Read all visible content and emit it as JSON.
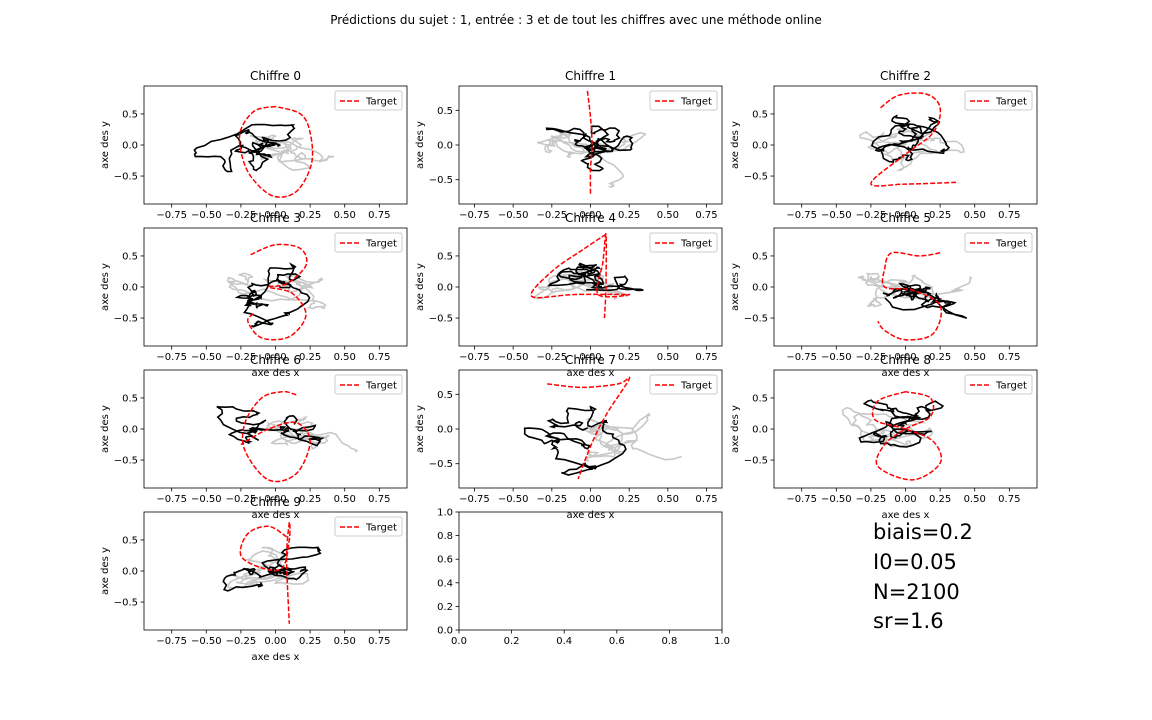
{
  "suptitle": "Prédictions du sujet : 1, entrée : 3 et de tout les chiffres avec une méthode online",
  "colors": {
    "target": "#ff0000",
    "prediction": "#000000",
    "secondary": "#c8c8c8"
  },
  "common": {
    "legend_label": "Target",
    "xlabel": "axe des x",
    "ylabel": "axe des y"
  },
  "chart_data": [
    {
      "type": "line",
      "title": "Chiffre 0",
      "xlim": [
        -0.95,
        0.95
      ],
      "ylim": [
        -0.95,
        0.95
      ],
      "xticks": [
        "−0.75",
        "−0.50",
        "−0.25",
        "0.00",
        "0.25",
        "0.50",
        "0.75"
      ],
      "yticks": [
        "0.5",
        "0.0",
        "−0.5"
      ],
      "legend": "top-right",
      "target": [
        [
          0.0,
          0.62
        ],
        [
          -0.15,
          0.55
        ],
        [
          -0.25,
          0.25
        ],
        [
          -0.25,
          -0.1
        ],
        [
          -0.18,
          -0.5
        ],
        [
          -0.02,
          -0.82
        ],
        [
          0.15,
          -0.75
        ],
        [
          0.26,
          -0.3
        ],
        [
          0.25,
          0.2
        ],
        [
          0.18,
          0.5
        ],
        [
          0.0,
          0.62
        ]
      ]
    },
    {
      "type": "line",
      "title": "Chiffre 1",
      "xlim": [
        -0.85,
        0.85
      ],
      "ylim": [
        -0.85,
        0.85
      ],
      "xticks": [
        "−0.75",
        "−0.50",
        "−0.25",
        "0.00",
        "0.25",
        "0.50",
        "0.75"
      ],
      "yticks": [
        "0.5",
        "0.0",
        "−0.5"
      ],
      "legend": "top-right",
      "target": [
        [
          -0.02,
          0.78
        ],
        [
          0.0,
          0.4
        ],
        [
          0.01,
          0.0
        ],
        [
          0.0,
          -0.35
        ],
        [
          0.0,
          -0.72
        ]
      ]
    },
    {
      "type": "line",
      "title": "Chiffre 2",
      "xlim": [
        -0.95,
        0.95
      ],
      "ylim": [
        -0.95,
        0.95
      ],
      "xticks": [
        "−0.75",
        "−0.50",
        "−0.25",
        "0.00",
        "0.25",
        "0.50",
        "0.75"
      ],
      "yticks": [
        "0.5",
        "0.0",
        "−0.5"
      ],
      "legend": "top-right",
      "target": [
        [
          -0.18,
          0.6
        ],
        [
          -0.05,
          0.8
        ],
        [
          0.15,
          0.82
        ],
        [
          0.25,
          0.6
        ],
        [
          0.2,
          0.2
        ],
        [
          0.0,
          -0.15
        ],
        [
          -0.25,
          -0.62
        ],
        [
          0.0,
          -0.63
        ],
        [
          0.38,
          -0.6
        ]
      ]
    },
    {
      "type": "line",
      "title": "Chiffre 3",
      "xlim": [
        -0.95,
        0.95
      ],
      "ylim": [
        -0.95,
        0.95
      ],
      "xticks": [
        "−0.75",
        "−0.50",
        "−0.25",
        "0.00",
        "0.25",
        "0.50",
        "0.75"
      ],
      "yticks": [
        "0.5",
        "0.0",
        "−0.5"
      ],
      "legend": "top-right",
      "target": [
        [
          -0.18,
          0.52
        ],
        [
          0.0,
          0.68
        ],
        [
          0.18,
          0.62
        ],
        [
          0.22,
          0.35
        ],
        [
          0.08,
          0.05
        ],
        [
          -0.05,
          0.0
        ],
        [
          0.12,
          -0.1
        ],
        [
          0.22,
          -0.45
        ],
        [
          0.1,
          -0.8
        ],
        [
          -0.1,
          -0.82
        ],
        [
          -0.2,
          -0.55
        ],
        [
          -0.15,
          -0.42
        ]
      ]
    },
    {
      "type": "line",
      "title": "Chiffre 4",
      "xlim": [
        -0.85,
        0.85
      ],
      "ylim": [
        -0.95,
        0.95
      ],
      "xticks": [
        "−0.75",
        "−0.50",
        "−0.25",
        "0.00",
        "0.25",
        "0.50",
        "0.75"
      ],
      "yticks": [
        "0.5",
        "0.0",
        "−0.5"
      ],
      "legend": "top-right",
      "target": [
        [
          0.1,
          0.85
        ],
        [
          -0.05,
          0.6
        ],
        [
          -0.25,
          0.25
        ],
        [
          -0.38,
          -0.15
        ],
        [
          -0.1,
          -0.12
        ],
        [
          0.25,
          -0.12
        ],
        [
          0.05,
          -0.12
        ],
        [
          0.08,
          0.4
        ],
        [
          0.1,
          0.85
        ],
        [
          0.1,
          0.0
        ],
        [
          0.09,
          -0.5
        ]
      ]
    },
    {
      "type": "line",
      "title": "Chiffre 5",
      "xlim": [
        -0.95,
        0.95
      ],
      "ylim": [
        -0.95,
        0.95
      ],
      "xticks": [
        "−0.75",
        "−0.50",
        "−0.25",
        "0.00",
        "0.25",
        "0.50",
        "0.75"
      ],
      "yticks": [
        "0.5",
        "0.0",
        "−0.5"
      ],
      "legend": "top-right",
      "target": [
        [
          0.25,
          0.55
        ],
        [
          0.1,
          0.5
        ],
        [
          -0.1,
          0.55
        ],
        [
          -0.15,
          0.3
        ],
        [
          -0.15,
          0.0
        ],
        [
          0.05,
          -0.05
        ],
        [
          0.25,
          -0.3
        ],
        [
          0.2,
          -0.75
        ],
        [
          0.0,
          -0.85
        ],
        [
          -0.15,
          -0.7
        ],
        [
          -0.2,
          -0.55
        ]
      ]
    },
    {
      "type": "line",
      "title": "Chiffre 6",
      "xlim": [
        -0.95,
        0.95
      ],
      "ylim": [
        -0.95,
        0.95
      ],
      "xticks": [
        "−0.75",
        "−0.50",
        "−0.25",
        "0.00",
        "0.25",
        "0.50",
        "0.75"
      ],
      "yticks": [
        "0.5",
        "0.0",
        "−0.5"
      ],
      "legend": "top-right",
      "target": [
        [
          0.15,
          0.55
        ],
        [
          0.05,
          0.6
        ],
        [
          -0.1,
          0.5
        ],
        [
          -0.22,
          0.1
        ],
        [
          -0.22,
          -0.35
        ],
        [
          -0.05,
          -0.82
        ],
        [
          0.15,
          -0.72
        ],
        [
          0.25,
          -0.2
        ],
        [
          0.15,
          0.1
        ],
        [
          -0.05,
          0.0
        ],
        [
          -0.25,
          -0.25
        ]
      ]
    },
    {
      "type": "line",
      "title": "Chiffre 7",
      "xlim": [
        -0.85,
        0.85
      ],
      "ylim": [
        -0.85,
        0.85
      ],
      "xticks": [
        "−0.75",
        "−0.50",
        "−0.25",
        "0.00",
        "0.25",
        "0.50",
        "0.75"
      ],
      "yticks": [
        "0.5",
        "0.0",
        "−0.5"
      ],
      "legend": "top-right",
      "target": [
        [
          -0.28,
          0.65
        ],
        [
          -0.05,
          0.6
        ],
        [
          0.18,
          0.65
        ],
        [
          0.25,
          0.72
        ],
        [
          0.1,
          0.2
        ],
        [
          0.0,
          -0.25
        ],
        [
          -0.08,
          -0.72
        ]
      ]
    },
    {
      "type": "line",
      "title": "Chiffre 8",
      "xlim": [
        -0.95,
        0.95
      ],
      "ylim": [
        -0.95,
        0.95
      ],
      "xticks": [
        "−0.75",
        "−0.50",
        "−0.25",
        "0.00",
        "0.25",
        "0.50",
        "0.75"
      ],
      "yticks": [
        "0.5",
        "0.0",
        "−0.5"
      ],
      "legend": "top-right",
      "target": [
        [
          0.0,
          0.6
        ],
        [
          -0.2,
          0.45
        ],
        [
          -0.22,
          0.15
        ],
        [
          0.0,
          0.0
        ],
        [
          0.2,
          -0.2
        ],
        [
          0.25,
          -0.55
        ],
        [
          0.05,
          -0.82
        ],
        [
          -0.2,
          -0.6
        ],
        [
          -0.15,
          -0.25
        ],
        [
          0.0,
          0.0
        ],
        [
          0.18,
          0.2
        ],
        [
          0.18,
          0.5
        ],
        [
          0.0,
          0.6
        ]
      ]
    },
    {
      "type": "line",
      "title": "Chiffre 9",
      "xlim": [
        -0.95,
        0.95
      ],
      "ylim": [
        -0.95,
        0.95
      ],
      "xticks": [
        "−0.75",
        "−0.50",
        "−0.25",
        "0.00",
        "0.25",
        "0.50",
        "0.75"
      ],
      "yticks": [
        "0.5",
        "0.0",
        "−0.5"
      ],
      "legend": "top-right",
      "target": [
        [
          0.08,
          0.55
        ],
        [
          -0.05,
          0.72
        ],
        [
          -0.2,
          0.6
        ],
        [
          -0.25,
          0.25
        ],
        [
          -0.1,
          0.05
        ],
        [
          0.05,
          0.05
        ],
        [
          0.1,
          0.5
        ],
        [
          0.1,
          0.78
        ],
        [
          0.08,
          0.2
        ],
        [
          0.1,
          -0.85
        ]
      ]
    },
    {
      "type": "line",
      "title": "",
      "xlim": [
        0,
        1
      ],
      "ylim": [
        0,
        1
      ],
      "xticks": [
        "0.0",
        "0.2",
        "0.4",
        "0.6",
        "0.8",
        "1.0"
      ],
      "yticks": [
        "1.0",
        "0.8",
        "0.6",
        "0.4",
        "0.2",
        "0.0"
      ],
      "legend": "none",
      "target": []
    }
  ],
  "params": [
    "biais=0.2",
    "I0=0.05",
    "N=2100",
    "sr=1.6"
  ]
}
